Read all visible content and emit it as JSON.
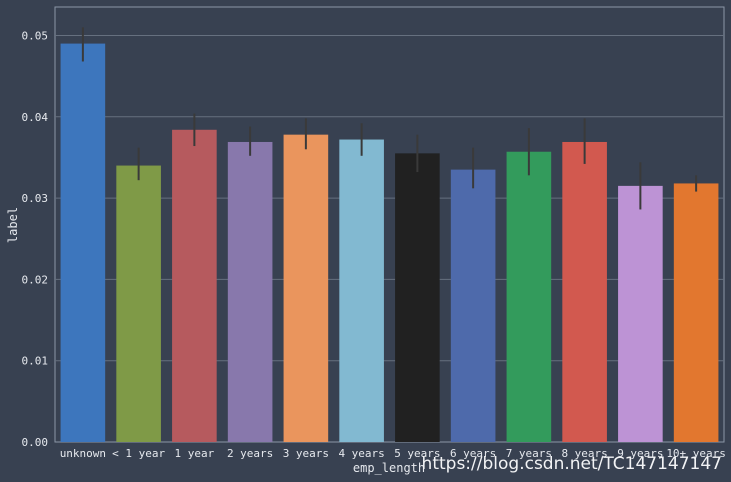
{
  "chart_data": {
    "type": "bar",
    "title": "",
    "xlabel": "emp_length",
    "ylabel": "label",
    "categories": [
      "unknown",
      "< 1 year",
      "1 year",
      "2 years",
      "3 years",
      "4 years",
      "5 years",
      "6 years",
      "7 years",
      "8 years",
      "9 years",
      "10+ years"
    ],
    "values": [
      0.049,
      0.034,
      0.0384,
      0.0369,
      0.0378,
      0.0372,
      0.0355,
      0.0335,
      0.0357,
      0.0369,
      0.0315,
      0.0318
    ],
    "error_low": [
      0.0468,
      0.0322,
      0.0364,
      0.0352,
      0.036,
      0.0352,
      0.0332,
      0.0312,
      0.0328,
      0.0342,
      0.0286,
      0.0308
    ],
    "error_high": [
      0.051,
      0.0362,
      0.0404,
      0.0388,
      0.0398,
      0.0392,
      0.0378,
      0.0362,
      0.0386,
      0.0398,
      0.0344,
      0.0328
    ],
    "colors": [
      "#3d76bd",
      "#7f9a47",
      "#b65a5e",
      "#8878ac",
      "#ea955d",
      "#82b9d1",
      "#212121",
      "#4e6aab",
      "#339b5c",
      "#d2594f",
      "#bd93d5",
      "#e2772f"
    ],
    "yticks": [
      "0.00",
      "0.01",
      "0.02",
      "0.03",
      "0.04",
      "0.05"
    ],
    "ylim": [
      0,
      0.0535
    ],
    "grid": true,
    "legend": "none"
  },
  "watermark": "https://blog.csdn.net/TC147147147"
}
